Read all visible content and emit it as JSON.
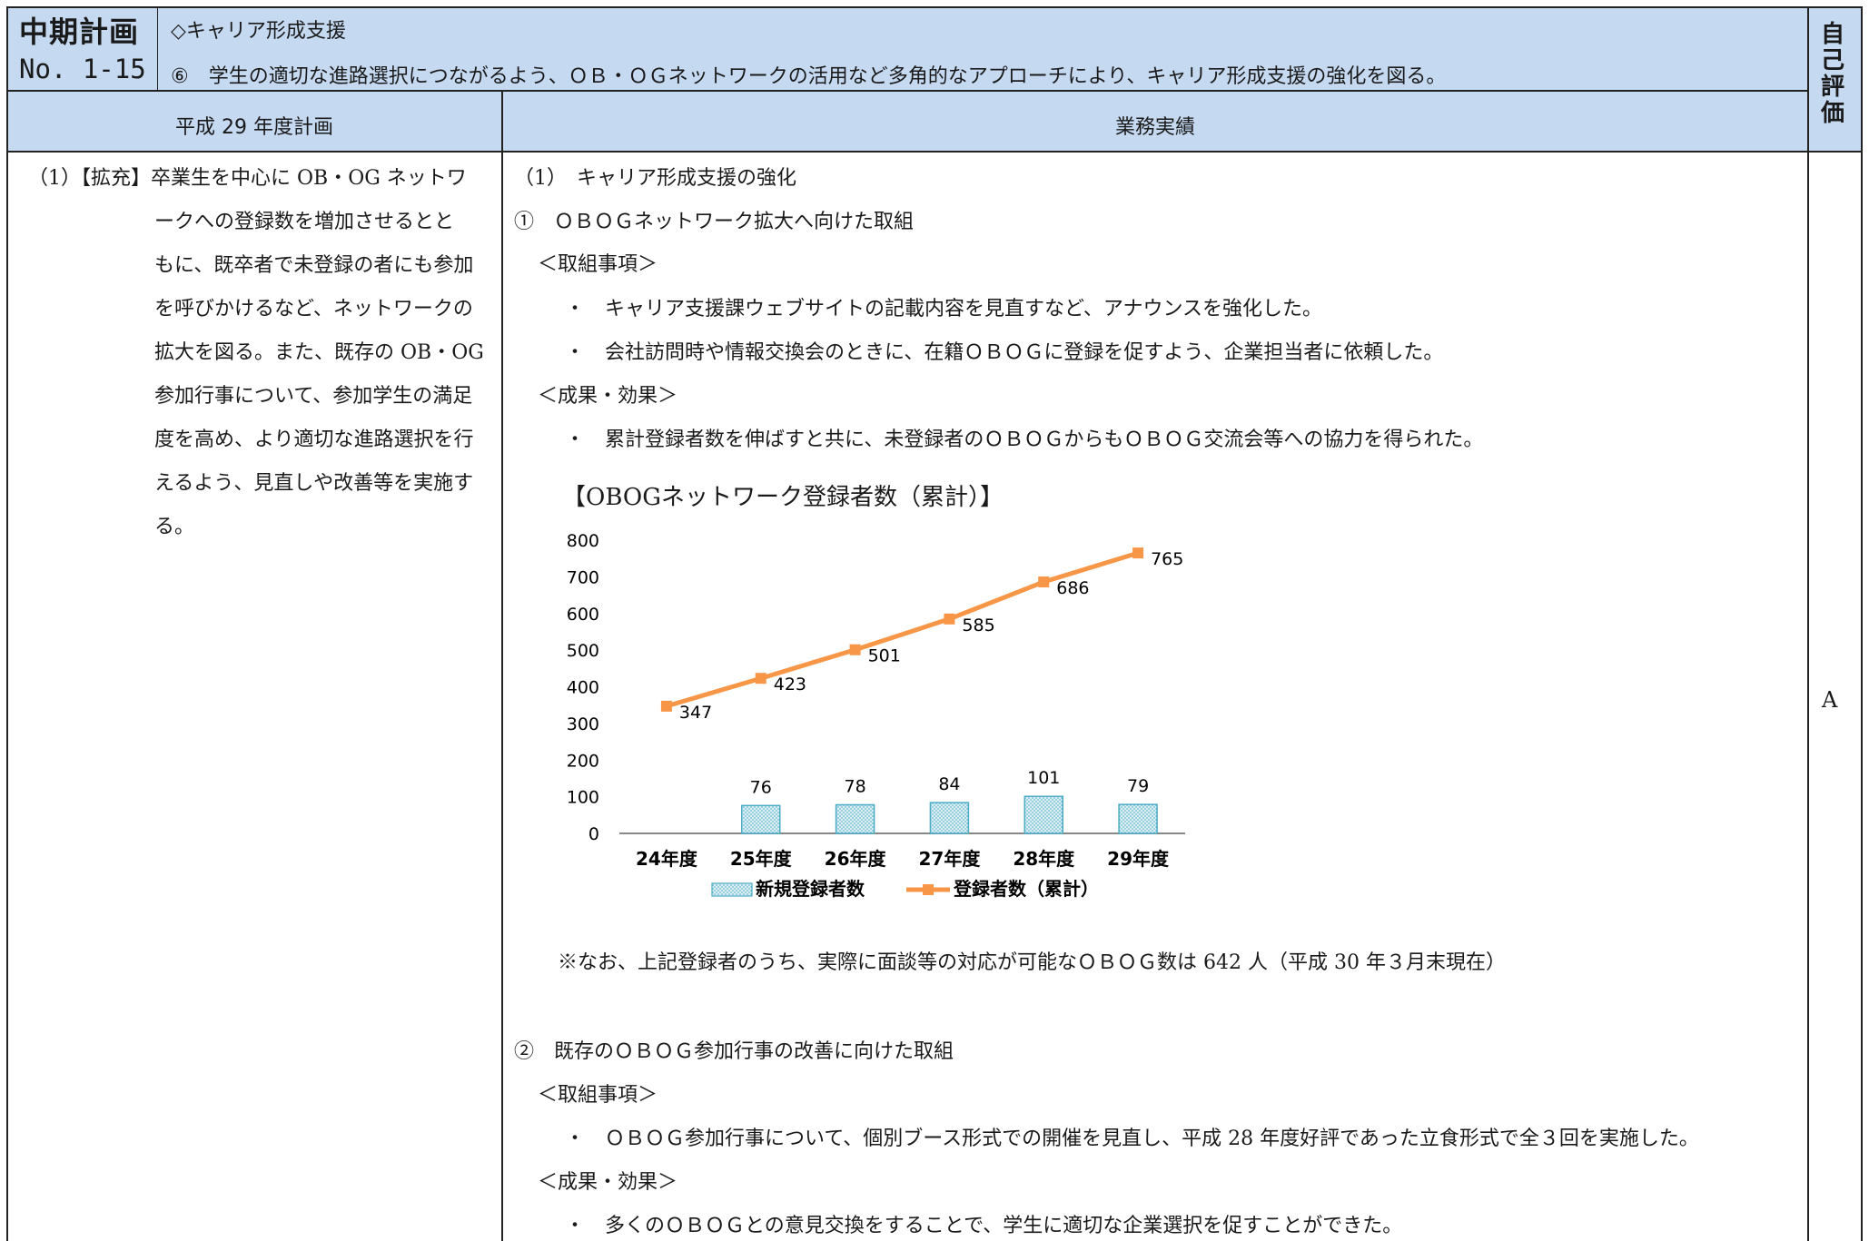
{
  "header": {
    "plan_title": "中期計画",
    "plan_no": "No. 1-15",
    "category": "◇キャリア形成支援",
    "goal": "⑥　学生の適切な進路選択につながるよう、ＯＢ・ＯＧネットワークの活用など多角的なアプローチにより、キャリア形成支援の強化を図る。",
    "self_eval_chars": [
      "自",
      "己",
      "評",
      "価"
    ],
    "col_plan": "平成 29 年度計画",
    "col_results": "業務実績"
  },
  "plan": {
    "lines": [
      "（1）【拡充】卒業生を中心に OB・OG ネットワ",
      "ークへの登録数を増加させるとと",
      "もに、既卒者で未登録の者にも参加",
      "を呼びかけるなど、ネットワークの",
      "拡大を図る。また、既存の OB・OG",
      "参加行事について、参加学生の満足",
      "度を高め、より適切な進路選択を行",
      "えるよう、見直しや改善等を実施す",
      "る。"
    ]
  },
  "results": {
    "heading": "（1）　キャリア形成支援の強化",
    "item1": {
      "title": "①　ＯＢＯＧネットワーク拡大へ向けた取組",
      "actions_label": "＜取組事項＞",
      "actions": [
        "・　キャリア支援課ウェブサイトの記載内容を見直すなど、アナウンスを強化した。",
        "・　会社訪問時や情報交換会のときに、在籍ＯＢＯＧに登録を促すよう、企業担当者に依頼した。"
      ],
      "effects_label": "＜成果・効果＞",
      "effects": [
        "・　累計登録者数を伸ばすと共に、未登録者のＯＢＯＧからもＯＢＯＧ交流会等への協力を得られた。"
      ],
      "note": "※なお、上記登録者のうち、実際に面談等の対応が可能なＯＢＯＧ数は 642 人（平成 30 年３月末現在）"
    },
    "item2": {
      "title": "②　既存のＯＢＯＧ参加行事の改善に向けた取組",
      "actions_label": "＜取組事項＞",
      "actions": [
        "・　ＯＢＯＧ参加行事について、個別ブース形式での開催を見直し、平成 28 年度好評であった立食形式で全３回を実施した。"
      ],
      "effects_label": "＜成果・効果＞",
      "effects": [
        "・　多くのＯＢＯＧとの意見交換をすることで、学生に適切な企業選択を促すことができた。"
      ]
    }
  },
  "self_eval_grade": "A",
  "chart_data": {
    "type": "bar",
    "title": "【OBOGネットワーク登録者数（累計）】",
    "categories": [
      "24年度",
      "25年度",
      "26年度",
      "27年度",
      "28年度",
      "29年度"
    ],
    "ylim": [
      0,
      800
    ],
    "yticks": [
      0,
      100,
      200,
      300,
      400,
      500,
      600,
      700,
      800
    ],
    "grid": false,
    "legend_position": "bottom",
    "series": [
      {
        "name": "新規登録者数",
        "type": "bar",
        "values": [
          null,
          76,
          78,
          84,
          101,
          79
        ],
        "color": "#4bacc6"
      },
      {
        "name": "登録者数（累計）",
        "type": "line",
        "values": [
          347,
          423,
          501,
          585,
          686,
          765
        ],
        "color": "#f79646"
      }
    ]
  }
}
